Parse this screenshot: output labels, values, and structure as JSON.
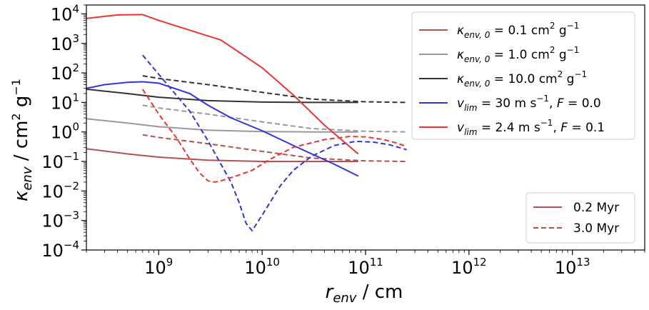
{
  "chart_data": {
    "type": "line",
    "xlabel": "r_env / cm",
    "ylabel": "κ_env / cm² g⁻¹",
    "xscale": "log",
    "yscale": "log",
    "xlim": [
      200000000.0,
      50000000000000.0
    ],
    "ylim": [
      0.0001,
      20000.0
    ],
    "x_ticks": [
      {
        "value": 1000000000.0,
        "base": "10",
        "exp": "9"
      },
      {
        "value": 10000000000.0,
        "base": "10",
        "exp": "10"
      },
      {
        "value": 100000000000.0,
        "base": "10",
        "exp": "11"
      },
      {
        "value": 1000000000000.0,
        "base": "10",
        "exp": "12"
      },
      {
        "value": 10000000000000.0,
        "base": "10",
        "exp": "13"
      }
    ],
    "y_ticks": [
      {
        "value": 0.0001,
        "base": "10",
        "exp": "−4"
      },
      {
        "value": 0.001,
        "base": "10",
        "exp": "−3"
      },
      {
        "value": 0.01,
        "base": "10",
        "exp": "−2"
      },
      {
        "value": 0.1,
        "base": "10",
        "exp": "−1"
      },
      {
        "value": 1,
        "base": "10",
        "exp": "0"
      },
      {
        "value": 10,
        "base": "10",
        "exp": "1"
      },
      {
        "value": 100,
        "base": "10",
        "exp": "2"
      },
      {
        "value": 1000,
        "base": "10",
        "exp": "3"
      },
      {
        "value": 10000,
        "base": "10",
        "exp": "4"
      }
    ],
    "grid": false,
    "colors": {
      "k01": "#b5504f",
      "k1": "#999999",
      "k10": "#333333",
      "vlim30": "#3333dd",
      "vlim24": "#ee3333"
    },
    "series": [
      {
        "id": "k01-0.2",
        "color": "k01",
        "style": "solid",
        "x": [
          200000000.0,
          500000000.0,
          1000000000.0,
          3000000000.0,
          10000000000.0,
          30000000000.0,
          85000000000.0
        ],
        "y": [
          0.27,
          0.18,
          0.14,
          0.11,
          0.1,
          0.1,
          0.1
        ]
      },
      {
        "id": "k01-3.0",
        "color": "k01",
        "style": "dashed",
        "x": [
          700000000.0,
          1000000000.0,
          3000000000.0,
          10000000000.0,
          30000000000.0,
          100000000000.0,
          250000000000.0
        ],
        "y": [
          0.8,
          0.65,
          0.4,
          0.22,
          0.13,
          0.105,
          0.1
        ]
      },
      {
        "id": "k1-0.2",
        "color": "k1",
        "style": "solid",
        "x": [
          200000000.0,
          500000000.0,
          1000000000.0,
          3000000000.0,
          10000000000.0,
          30000000000.0,
          85000000000.0
        ],
        "y": [
          2.8,
          2.0,
          1.5,
          1.15,
          1.03,
          1.0,
          1.0
        ]
      },
      {
        "id": "k1-3.0",
        "color": "k1",
        "style": "dashed",
        "x": [
          700000000.0,
          1000000000.0,
          3000000000.0,
          10000000000.0,
          30000000000.0,
          100000000000.0,
          250000000000.0
        ],
        "y": [
          8,
          6.5,
          4.0,
          2.2,
          1.3,
          1.05,
          1.0
        ]
      },
      {
        "id": "k10-0.2",
        "color": "k10",
        "style": "solid",
        "x": [
          200000000.0,
          500000000.0,
          1000000000.0,
          3000000000.0,
          10000000000.0,
          30000000000.0,
          85000000000.0
        ],
        "y": [
          28,
          20,
          15,
          11.5,
          10.3,
          10,
          10
        ]
      },
      {
        "id": "k10-3.0",
        "color": "k10",
        "style": "dashed",
        "x": [
          700000000.0,
          1000000000.0,
          3000000000.0,
          10000000000.0,
          30000000000.0,
          100000000000.0,
          250000000000.0
        ],
        "y": [
          80,
          65,
          40,
          22,
          13,
          10.5,
          10
        ]
      },
      {
        "id": "v30-0.2",
        "color": "vlim30",
        "style": "solid",
        "x": [
          200000000.0,
          300000000.0,
          500000000.0,
          700000000.0,
          1000000000.0,
          2000000000.0,
          3000000000.0,
          5000000000.0,
          10000000000.0,
          20000000000.0,
          50000000000.0,
          85000000000.0
        ],
        "y": [
          30,
          40,
          48,
          50,
          45,
          20,
          8,
          3,
          1.1,
          0.35,
          0.08,
          0.032
        ]
      },
      {
        "id": "v30-3.0",
        "color": "vlim30",
        "style": "dashed",
        "x": [
          700000000.0,
          1000000000.0,
          2000000000.0,
          3000000000.0,
          4000000000.0,
          5000000000.0,
          6000000000.0,
          7000000000.0,
          8000000000.0,
          10000000000.0,
          15000000000.0,
          20000000000.0,
          30000000000.0,
          50000000000.0,
          80000000000.0,
          120000000000.0,
          170000000000.0,
          250000000000.0
        ],
        "y": [
          400,
          90,
          5,
          0.5,
          0.08,
          0.02,
          0.004,
          0.0008,
          0.00045,
          0.0015,
          0.015,
          0.05,
          0.15,
          0.35,
          0.48,
          0.45,
          0.37,
          0.25
        ]
      },
      {
        "id": "v24-0.2",
        "color": "vlim24",
        "style": "solid",
        "x": [
          200000000.0,
          400000000.0,
          700000000.0,
          1000000000.0,
          2000000000.0,
          4000000000.0,
          10000000000.0,
          20000000000.0,
          40000000000.0,
          85000000000.0
        ],
        "y": [
          7000,
          9200,
          9500,
          6000,
          2800,
          1300,
          150,
          18,
          1.7,
          0.18
        ]
      },
      {
        "id": "v24-3.0",
        "color": "vlim24",
        "style": "dashed",
        "x": [
          700000000.0,
          1000000000.0,
          1500000000.0,
          2000000000.0,
          2500000000.0,
          3000000000.0,
          3500000000.0,
          4000000000.0,
          6000000000.0,
          8000000000.0,
          12000000000.0,
          20000000000.0,
          40000000000.0,
          70000000000.0,
          100000000000.0,
          150000000000.0,
          200000000000.0,
          250000000000.0
        ],
        "y": [
          28,
          4,
          0.6,
          0.12,
          0.04,
          0.022,
          0.02,
          0.022,
          0.035,
          0.05,
          0.12,
          0.3,
          0.55,
          0.7,
          0.68,
          0.55,
          0.42,
          0.32
        ]
      }
    ],
    "legend_main": {
      "placement": "upper-right",
      "entries": [
        {
          "color": "k01",
          "sym": "κ",
          "sub": "env, 0",
          "rest": " = 0.1 cm",
          "sup": "2",
          "tail": " g",
          "sup2": "−1"
        },
        {
          "color": "k1",
          "sym": "κ",
          "sub": "env, 0",
          "rest": " = 1.0 cm",
          "sup": "2",
          "tail": " g",
          "sup2": "−1"
        },
        {
          "color": "k10",
          "sym": "κ",
          "sub": "env, 0",
          "rest": " = 10.0 cm",
          "sup": "2",
          "tail": " g",
          "sup2": "−1"
        },
        {
          "color": "vlim30",
          "sym": "v",
          "sub": "lim",
          "rest": " = 30 m s",
          "sup": "−1",
          "tail": ", ",
          "italic_tail": "F",
          "end": " = 0.0"
        },
        {
          "color": "vlim24",
          "sym": "v",
          "sub": "lim",
          "rest": " = 2.4 m s",
          "sup": "−1",
          "tail": ", ",
          "italic_tail": "F",
          "end": " = 0.1"
        }
      ]
    },
    "legend_time": {
      "placement": "lower-right",
      "entries": [
        {
          "label": "0.2 Myr",
          "style": "solid",
          "color": "k01"
        },
        {
          "label": "3.0 Myr",
          "style": "dashed",
          "color": "k01"
        }
      ]
    }
  }
}
